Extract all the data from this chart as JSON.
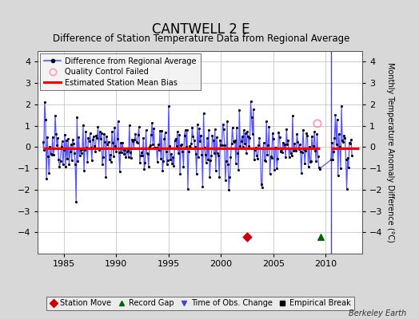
{
  "title": "CANTWELL 2 E",
  "subtitle": "Difference of Station Temperature Data from Regional Average",
  "ylabel_right": "Monthly Temperature Anomaly Difference (°C)",
  "credit": "Berkeley Earth",
  "xlim": [
    1982.5,
    2013.5
  ],
  "ylim": [
    -5,
    4.5
  ],
  "yticks": [
    -4,
    -3,
    -2,
    -1,
    0,
    1,
    2,
    3,
    4
  ],
  "xticks": [
    1985,
    1990,
    1995,
    2000,
    2005,
    2010
  ],
  "bias_level": -0.05,
  "bias_x1": 1983.0,
  "bias_x2": 2009.4,
  "bias_x3": 2010.5,
  "bias_x4": 2013.2,
  "station_move_x": 2002.5,
  "station_move_y": -4.2,
  "record_gap_x": 2009.5,
  "record_gap_y": -4.2,
  "vertical_line_x": 2010.5,
  "qc_fail_x": 2009.2,
  "qc_fail_y": 1.1,
  "background_color": "#d8d8d8",
  "plot_bg_color": "#ffffff",
  "line_color": "#5555ff",
  "dot_color": "#000000",
  "bias_color": "#ff0000",
  "station_move_color": "#cc0000",
  "record_gap_color": "#006600",
  "obs_change_color": "#4444cc",
  "qc_fail_edgecolor": "#ff99bb",
  "title_fontsize": 12,
  "subtitle_fontsize": 8.5,
  "tick_fontsize": 8,
  "legend_fontsize": 7,
  "seed": 42
}
